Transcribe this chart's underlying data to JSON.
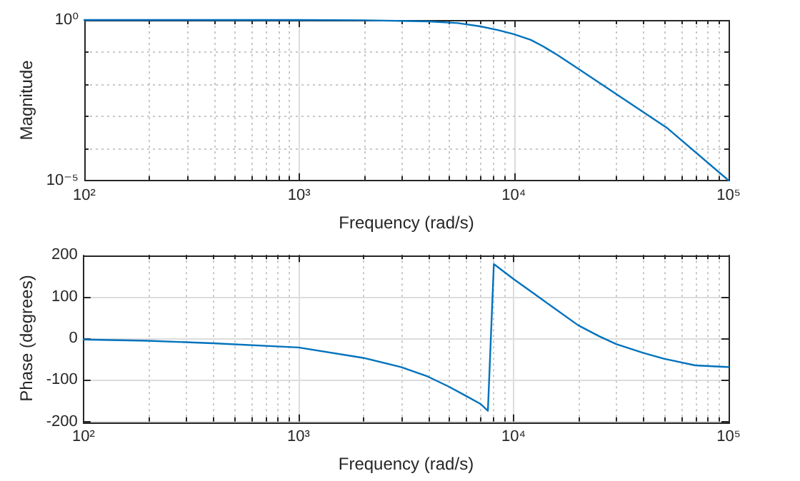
{
  "chart_data": [
    {
      "type": "line",
      "xlabel": "Frequency (rad/s)",
      "ylabel": "Magnitude",
      "log": "xy",
      "grid": true,
      "marker": "none",
      "line_style": "solid",
      "xlim": [
        100,
        100000
      ],
      "ylim": [
        1e-05,
        1
      ],
      "xticks": [
        {
          "value": 100,
          "label": "10²"
        },
        {
          "value": 200,
          "label": null
        },
        {
          "value": 300,
          "label": null
        },
        {
          "value": 400,
          "label": null
        },
        {
          "value": 500,
          "label": null
        },
        {
          "value": 600,
          "label": null
        },
        {
          "value": 700,
          "label": null
        },
        {
          "value": 800,
          "label": null
        },
        {
          "value": 900,
          "label": null
        },
        {
          "value": 1000,
          "label": "10³"
        },
        {
          "value": 2000,
          "label": null
        },
        {
          "value": 3000,
          "label": null
        },
        {
          "value": 4000,
          "label": null
        },
        {
          "value": 5000,
          "label": null
        },
        {
          "value": 6000,
          "label": null
        },
        {
          "value": 7000,
          "label": null
        },
        {
          "value": 8000,
          "label": null
        },
        {
          "value": 9000,
          "label": null
        },
        {
          "value": 10000,
          "label": "10⁴"
        },
        {
          "value": 20000,
          "label": null
        },
        {
          "value": 30000,
          "label": null
        },
        {
          "value": 40000,
          "label": null
        },
        {
          "value": 50000,
          "label": null
        },
        {
          "value": 60000,
          "label": null
        },
        {
          "value": 70000,
          "label": null
        },
        {
          "value": 80000,
          "label": null
        },
        {
          "value": 90000,
          "label": null
        },
        {
          "value": 100000,
          "label": "10⁵"
        }
      ],
      "yticks": [
        {
          "value": 1e-05,
          "label": "10⁻⁵"
        },
        {
          "value": 0.0001,
          "label": null
        },
        {
          "value": 0.001,
          "label": null
        },
        {
          "value": 0.01,
          "label": null
        },
        {
          "value": 0.1,
          "label": null
        },
        {
          "value": 1,
          "label": "10⁰"
        }
      ],
      "series": [
        {
          "color": "#0072bd",
          "x": [
            100,
            300,
            1000,
            2000,
            4000,
            5500,
            7000,
            8500,
            10000,
            12000,
            13700,
            16000,
            20000,
            34000,
            52000,
            100000
          ],
          "values": [
            1,
            1,
            1,
            0.98,
            0.9,
            0.8,
            0.63,
            0.48,
            0.36,
            0.24,
            0.15,
            0.08,
            0.03,
            0.0028,
            0.00042,
            1e-05
          ]
        }
      ]
    },
    {
      "type": "line",
      "xlabel": "Frequency (rad/s)",
      "ylabel": "Phase (degrees)",
      "log": "x",
      "grid": true,
      "marker": "none",
      "line_style": "solid",
      "xlim": [
        100,
        100000
      ],
      "ylim": [
        -200,
        200
      ],
      "xticks": [
        {
          "value": 100,
          "label": "10²"
        },
        {
          "value": 200,
          "label": null
        },
        {
          "value": 300,
          "label": null
        },
        {
          "value": 400,
          "label": null
        },
        {
          "value": 500,
          "label": null
        },
        {
          "value": 600,
          "label": null
        },
        {
          "value": 700,
          "label": null
        },
        {
          "value": 800,
          "label": null
        },
        {
          "value": 900,
          "label": null
        },
        {
          "value": 1000,
          "label": "10³"
        },
        {
          "value": 2000,
          "label": null
        },
        {
          "value": 3000,
          "label": null
        },
        {
          "value": 4000,
          "label": null
        },
        {
          "value": 5000,
          "label": null
        },
        {
          "value": 6000,
          "label": null
        },
        {
          "value": 7000,
          "label": null
        },
        {
          "value": 8000,
          "label": null
        },
        {
          "value": 9000,
          "label": null
        },
        {
          "value": 10000,
          "label": "10⁴"
        },
        {
          "value": 20000,
          "label": null
        },
        {
          "value": 30000,
          "label": null
        },
        {
          "value": 40000,
          "label": null
        },
        {
          "value": 50000,
          "label": null
        },
        {
          "value": 60000,
          "label": null
        },
        {
          "value": 70000,
          "label": null
        },
        {
          "value": 80000,
          "label": null
        },
        {
          "value": 90000,
          "label": null
        },
        {
          "value": 100000,
          "label": "10⁵"
        }
      ],
      "yticks": [
        -200,
        -100,
        0,
        100,
        200
      ],
      "series": [
        {
          "color": "#0072bd",
          "x": [
            100,
            200,
            400,
            1000,
            2000,
            3000,
            4000,
            5000,
            6000,
            7000,
            7600,
            8100,
            10000,
            12000,
            15000,
            20000,
            25000,
            30000,
            40000,
            50000,
            70000,
            100000
          ],
          "values": [
            -3,
            -6,
            -12,
            -22,
            -47,
            -69,
            -92,
            -116,
            -138,
            -157,
            -174,
            178,
            142,
            113,
            77,
            31,
            5,
            -14,
            -35,
            -49,
            -65,
            -69
          ]
        }
      ]
    }
  ]
}
